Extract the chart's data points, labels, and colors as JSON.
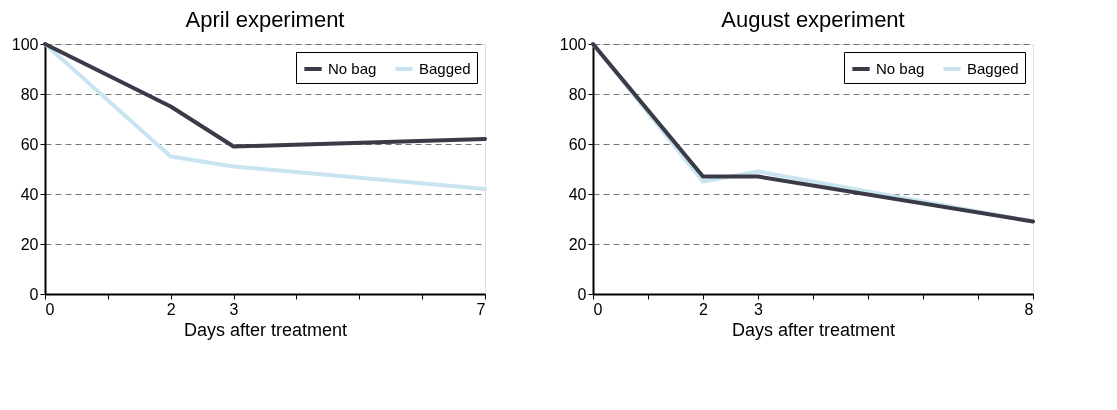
{
  "chart_data": [
    {
      "type": "line",
      "title": "April experiment",
      "xlabel": "Days after treatment",
      "x": [
        0,
        2,
        3,
        7
      ],
      "series": [
        {
          "name": "No bag",
          "color": "#3a3a48",
          "values": [
            100,
            75,
            59,
            62
          ]
        },
        {
          "name": "Bagged",
          "color": "#c8e4f0",
          "values": [
            100,
            55,
            51,
            42
          ]
        }
      ],
      "xlim": [
        0,
        7
      ],
      "xticks": [
        0,
        {
          "value": 1,
          "label": null
        },
        2,
        3,
        {
          "value": 4,
          "label": null
        },
        {
          "value": 5,
          "label": null
        },
        {
          "value": 6,
          "label": null
        },
        7
      ],
      "ylim": [
        0,
        100
      ],
      "yticks": [
        0,
        20,
        40,
        60,
        80,
        100
      ],
      "grid": "y",
      "legend": "top right",
      "marker": "none",
      "line_style": "solid"
    },
    {
      "type": "line",
      "title": "August experiment",
      "xlabel": "Days after treatment",
      "x": [
        0,
        2,
        3,
        8
      ],
      "series": [
        {
          "name": "No bag",
          "color": "#3a3a48",
          "values": [
            100,
            47,
            47,
            29
          ]
        },
        {
          "name": "Bagged",
          "color": "#c8e4f0",
          "values": [
            100,
            45,
            49,
            29
          ]
        }
      ],
      "xlim": [
        0,
        8
      ],
      "xticks": [
        0,
        {
          "value": 1,
          "label": null
        },
        2,
        3,
        {
          "value": 4,
          "label": null
        },
        {
          "value": 5,
          "label": null
        },
        {
          "value": 6,
          "label": null
        },
        {
          "value": 7,
          "label": null
        },
        8
      ],
      "ylim": [
        0,
        100
      ],
      "yticks": [
        0,
        20,
        40,
        60,
        80,
        100
      ],
      "grid": "y",
      "legend": "top right",
      "marker": "none",
      "line_style": "solid"
    }
  ]
}
